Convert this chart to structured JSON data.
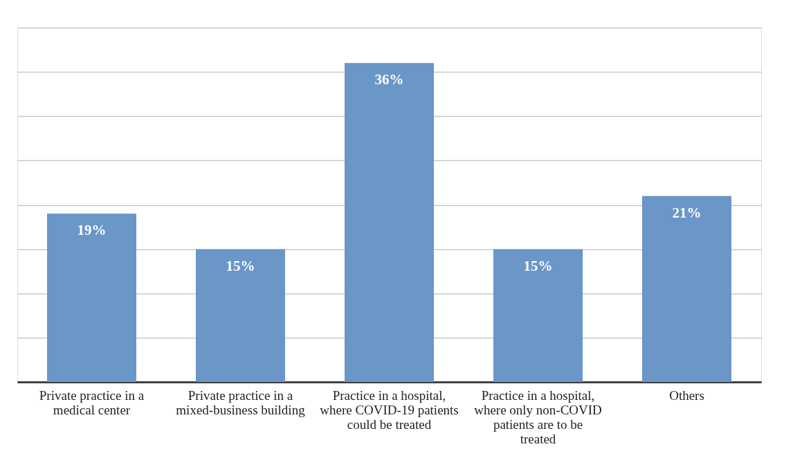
{
  "chart_data": {
    "type": "bar",
    "categories": [
      "Private practice in a medical center",
      "Private practice in a mixed-business building",
      "Practice in a hospital, where COVID-19 patients could be treated",
      "Practice in a hospital, where only non-COVID patients are to be treated",
      "Others"
    ],
    "values": [
      19,
      15,
      36,
      15,
      21
    ],
    "color": "#6a96c8",
    "ylim": [
      0,
      40
    ],
    "yticks": [
      {
        "value": 0,
        "label": null
      },
      {
        "value": 5,
        "label": null
      },
      {
        "value": 10,
        "label": null
      },
      {
        "value": 15,
        "label": null
      },
      {
        "value": 20,
        "label": null
      },
      {
        "value": 25,
        "label": null
      },
      {
        "value": 30,
        "label": null
      },
      {
        "value": 35,
        "label": null
      },
      {
        "value": 40,
        "label": null
      }
    ],
    "value_labels": [
      "19%",
      "15%",
      "36%",
      "15%",
      "21%"
    ],
    "grid": "y",
    "tick_labels": "x"
  }
}
